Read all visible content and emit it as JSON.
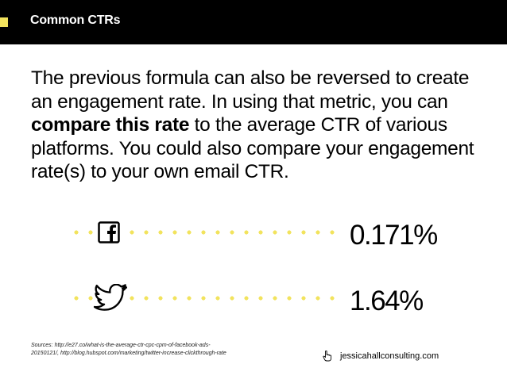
{
  "header": {
    "title": "Common CTRs",
    "background_color": "#000000",
    "accent_color": "#f2e35d"
  },
  "body": {
    "text_part1": "The previous formula can also be reversed to create an engagement rate. In using that metric, you can ",
    "text_bold": "compare this rate",
    "text_part2": " to the average CTR of various platforms. You could also compare your engagement rate(s) to your own email CTR."
  },
  "stats": [
    {
      "icon": "facebook-icon",
      "value": "0.171%"
    },
    {
      "icon": "twitter-icon",
      "value": "1.64%"
    }
  ],
  "footer": {
    "sources": "Sources: http://e27.co/what-is-the-average-ctr-cpc-cpm-of-facebook-ads-20150121/, http://blog.hubspot.com/marketing/twitter-increase-clickthrough-rate",
    "website": "jessicahallconsulting.com",
    "website_icon": "pointing-hand-icon"
  }
}
